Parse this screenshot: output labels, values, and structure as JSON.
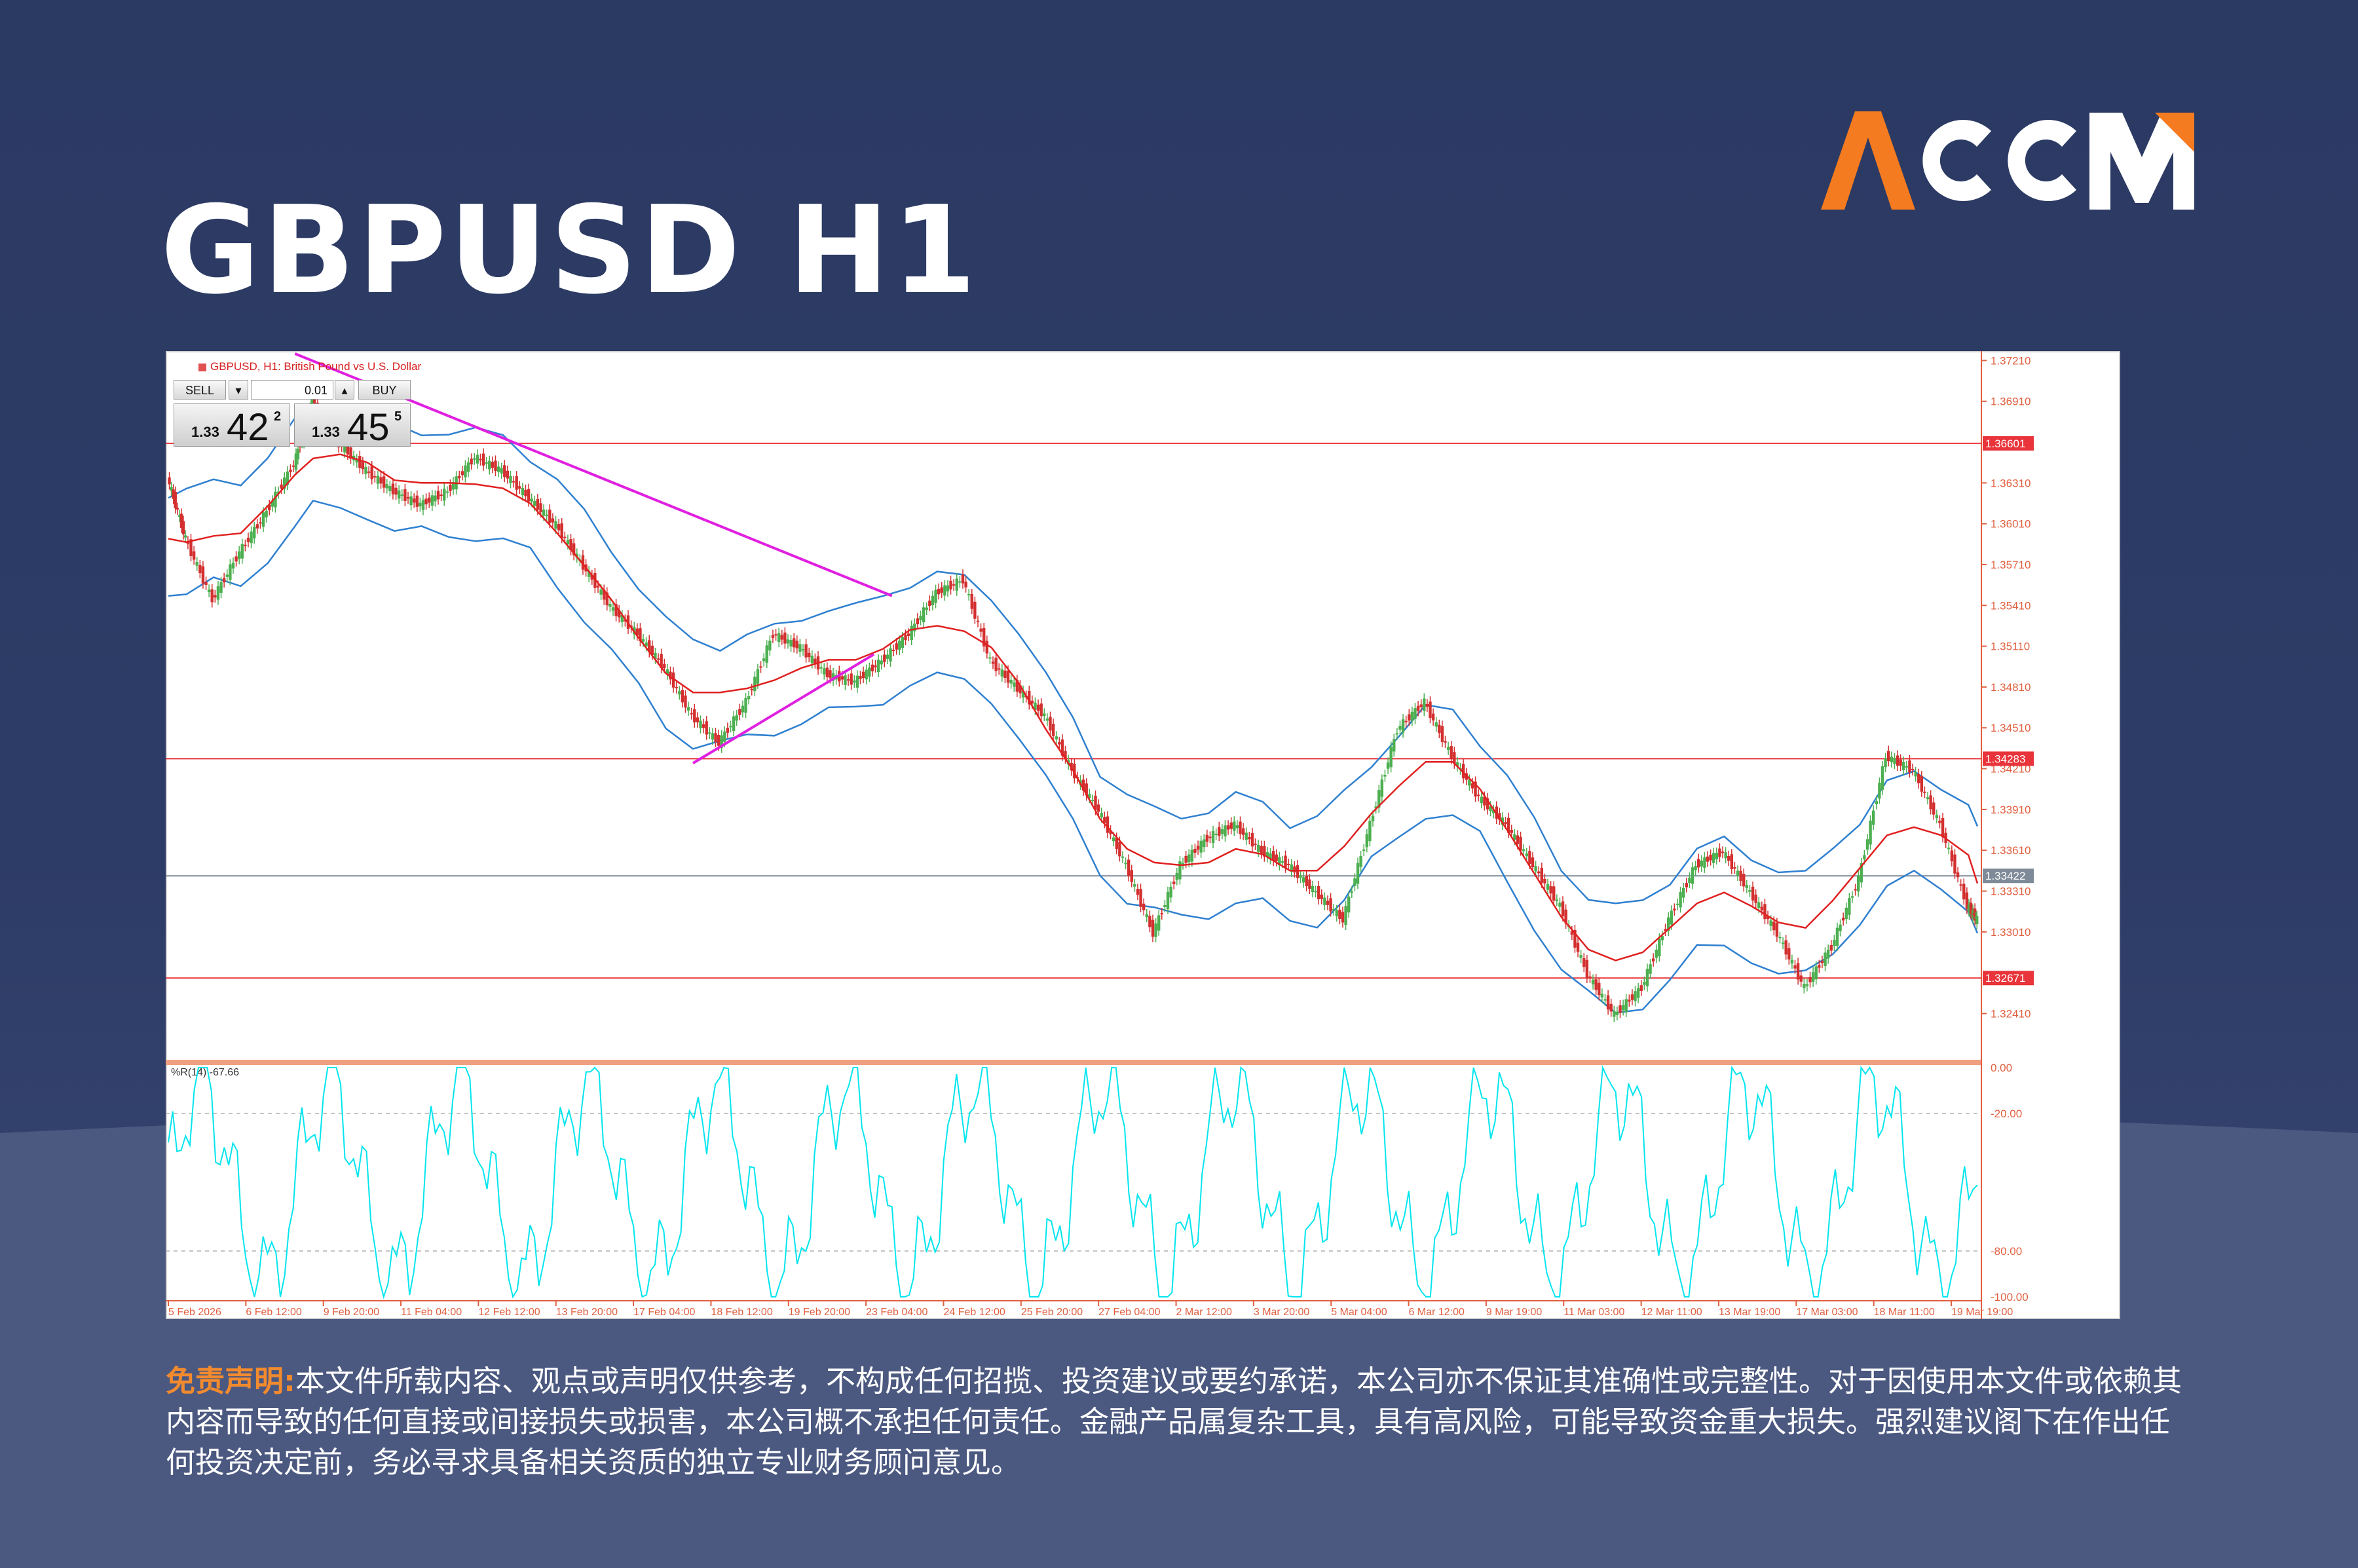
{
  "brand": {
    "name": "ACCM",
    "accent": "#f47b20",
    "text_color": "#ffffff"
  },
  "title": "GBPUSD H1",
  "chart_data": {
    "type": "line",
    "symbol_label": "GBPUSD, H1: British Pound vs U.S. Dollar",
    "trade_panel": {
      "sell_label": "SELL",
      "buy_label": "BUY",
      "lot": "0.01",
      "sell_price": {
        "prefix": "1.33",
        "big": "42",
        "sup": "2"
      },
      "buy_price": {
        "prefix": "1.33",
        "big": "45",
        "sup": "5"
      }
    },
    "price_axis": {
      "ticks": [
        "1.37210",
        "1.36910",
        "1.36310",
        "1.36010",
        "1.35710",
        "1.35410",
        "1.35110",
        "1.34810",
        "1.34510",
        "1.34210",
        "1.33910",
        "1.33610",
        "1.33310",
        "1.33010",
        "1.32410"
      ],
      "ylim": [
        1.3208,
        1.3726
      ]
    },
    "horizontal_levels": [
      {
        "value": 1.36601,
        "label": "1.36601",
        "color": "#e8343a"
      },
      {
        "value": 1.34283,
        "label": "1.34283",
        "color": "#e8343a"
      },
      {
        "value": 1.33422,
        "label": "1.33422",
        "color": "#7f8a98"
      },
      {
        "value": 1.32671,
        "label": "1.32671",
        "color": "#e8343a"
      }
    ],
    "trendlines": [
      {
        "color": "#e020e0",
        "points": [
          [
            0.07,
            1.3726
          ],
          [
            0.4,
            1.3548
          ]
        ]
      },
      {
        "color": "#e020e0",
        "points": [
          [
            0.29,
            1.3425
          ],
          [
            0.39,
            1.3505
          ]
        ]
      }
    ],
    "x_labels": [
      "5 Feb 2026",
      "6 Feb 12:00",
      "9 Feb 20:00",
      "11 Feb 04:00",
      "12 Feb 12:00",
      "13 Feb 20:00",
      "17 Feb 04:00",
      "18 Feb 12:00",
      "19 Feb 20:00",
      "23 Feb 04:00",
      "24 Feb 12:00",
      "25 Feb 20:00",
      "27 Feb 04:00",
      "2 Mar 12:00",
      "3 Mar 20:00",
      "5 Mar 04:00",
      "6 Mar 12:00",
      "9 Mar 19:00",
      "11 Mar 03:00",
      "12 Mar 11:00",
      "13 Mar 19:00",
      "17 Mar 03:00",
      "18 Mar 11:00",
      "19 Mar 19:00"
    ],
    "price_path": {
      "x": [
        0.0,
        0.01,
        0.025,
        0.04,
        0.055,
        0.07,
        0.08,
        0.095,
        0.11,
        0.125,
        0.14,
        0.155,
        0.17,
        0.185,
        0.2,
        0.215,
        0.23,
        0.245,
        0.26,
        0.275,
        0.29,
        0.305,
        0.32,
        0.335,
        0.35,
        0.365,
        0.38,
        0.395,
        0.41,
        0.425,
        0.44,
        0.455,
        0.47,
        0.485,
        0.5,
        0.515,
        0.53,
        0.545,
        0.56,
        0.575,
        0.59,
        0.605,
        0.62,
        0.635,
        0.65,
        0.665,
        0.68,
        0.695,
        0.71,
        0.725,
        0.74,
        0.755,
        0.77,
        0.785,
        0.8,
        0.815,
        0.83,
        0.845,
        0.86,
        0.875,
        0.89,
        0.905,
        0.92,
        0.935,
        0.95,
        0.965,
        0.98,
        0.995,
        1.0
      ],
      "y": [
        1.3635,
        1.359,
        1.3545,
        1.358,
        1.361,
        1.3645,
        1.369,
        1.366,
        1.364,
        1.3625,
        1.3615,
        1.3625,
        1.365,
        1.364,
        1.362,
        1.36,
        1.357,
        1.354,
        1.352,
        1.3495,
        1.346,
        1.344,
        1.347,
        1.352,
        1.351,
        1.349,
        1.3485,
        1.35,
        1.352,
        1.355,
        1.356,
        1.35,
        1.348,
        1.346,
        1.342,
        1.339,
        1.335,
        1.33,
        1.335,
        1.337,
        1.338,
        1.336,
        1.335,
        1.333,
        1.331,
        1.338,
        1.345,
        1.347,
        1.343,
        1.34,
        1.338,
        1.335,
        1.332,
        1.327,
        1.324,
        1.326,
        1.331,
        1.335,
        1.336,
        1.333,
        1.33,
        1.326,
        1.329,
        1.334,
        1.343,
        1.342,
        1.338,
        1.332,
        1.331
      ]
    },
    "indicator": {
      "label": "%R(14) -67.66",
      "ticks": [
        "0.00",
        "-20.00",
        "-80.00",
        "-100.00"
      ],
      "ylim": [
        -100,
        0
      ],
      "levels": [
        -20,
        -80
      ],
      "color": "#00e5ee"
    }
  },
  "disclaimer": {
    "label": "免责声明:",
    "text": "本文件所载内容、观点或声明仅供参考，不构成任何招揽、投资建议或要约承诺，本公司亦不保证其准确性或完整性。对于因使用本文件或依赖其内容而导致的任何直接或间接损失或损害，本公司概不承担任何责任。金融产品属复杂工具，具有高风险，可能导致资金重大损失。强烈建议阁下在作出任何投资决定前，务必寻求具备相关资质的独立专业财务顾问意见。"
  }
}
